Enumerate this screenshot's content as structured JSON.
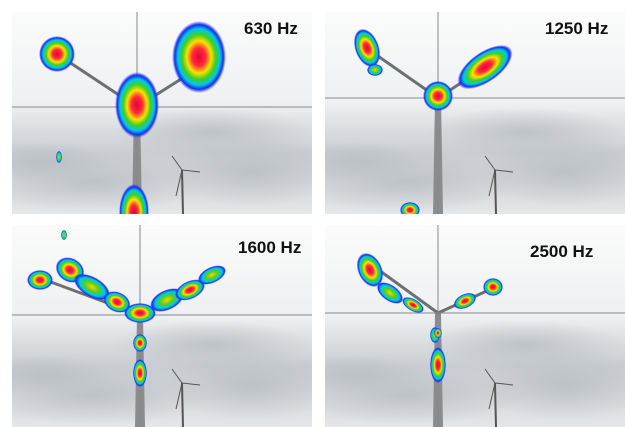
{
  "panels": [
    {
      "label": "630 Hz"
    },
    {
      "label": "1250 Hz"
    },
    {
      "label": "1600 Hz"
    },
    {
      "label": "2500 Hz"
    }
  ]
}
